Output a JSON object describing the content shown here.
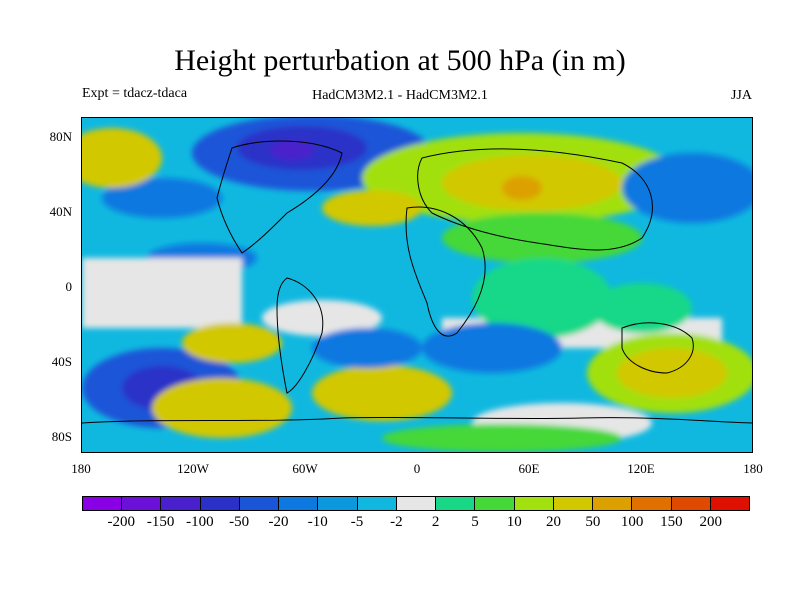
{
  "title": "Height perturbation at 500 hPa (in m)",
  "subtitle_left": "Expt = tdacz-tdaca",
  "subtitle_center": "HadCM3M2.1 - HadCM3M2.1",
  "subtitle_right": "JJA",
  "axes": {
    "lat_labels": [
      "80N",
      "40N",
      "0",
      "40S",
      "80S"
    ],
    "lon_labels": [
      "180",
      "120W",
      "60W",
      "0",
      "60E",
      "120E",
      "180"
    ]
  },
  "legend": {
    "colors": [
      "#8a00e6",
      "#6a10d8",
      "#4a20cc",
      "#2a30c8",
      "#1a55d8",
      "#0d78e0",
      "#0c98dc",
      "#10b8e0",
      "#e6e6e6",
      "#18d888",
      "#44d838",
      "#a2e010",
      "#d2c800",
      "#dca000",
      "#e07000",
      "#e04a00",
      "#e01000"
    ],
    "labels": [
      "-200",
      "-150",
      "-100",
      "-50",
      "-20",
      "-10",
      "-5",
      "-2",
      "2",
      "5",
      "10",
      "20",
      "50",
      "100",
      "150",
      "200"
    ]
  },
  "palette": {
    "purple": "#6a10d8",
    "deep_blue": "#2a30c8",
    "blue": "#1a55d8",
    "mid_blue": "#0d78e0",
    "light_blue": "#0c98dc",
    "sky": "#10b8e0",
    "neutral": "#e6e6e6",
    "teal_green": "#18d888",
    "green": "#44d838",
    "yellow_green": "#a2e010",
    "yellow": "#d2c800",
    "orange": "#dca000"
  }
}
